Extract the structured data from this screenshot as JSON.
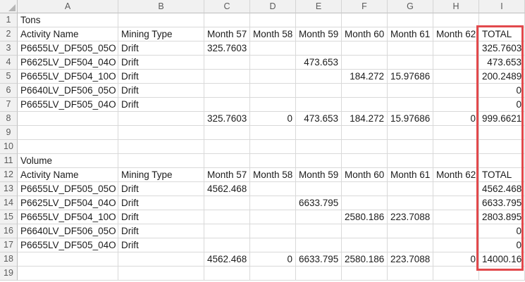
{
  "sheet": {
    "column_letters": [
      "A",
      "B",
      "C",
      "D",
      "E",
      "F",
      "G",
      "H",
      "I"
    ],
    "colors": {
      "highlight_border": "#e2494c",
      "gridline": "#d9d9d9",
      "header_background": "#f1f1f1",
      "header_text": "#5a5a5a"
    },
    "highlight": {
      "range": "I2:I18",
      "description": "red border drawn around the TOTAL column of both tables"
    },
    "rows": [
      {
        "n": "1",
        "cells": {
          "A": "Tons"
        }
      },
      {
        "n": "2",
        "cells": {
          "A": "Activity Name",
          "B": "Mining Type",
          "C": "Month 57",
          "D": "Month 58",
          "E": "Month 59",
          "F": "Month 60",
          "G": "Month 61",
          "H": "Month 62",
          "I": "TOTAL"
        }
      },
      {
        "n": "3",
        "cells": {
          "A": "P6655LV_DF505_05O",
          "B": "Drift",
          "C": "325.7603",
          "I": "325.7603"
        }
      },
      {
        "n": "4",
        "cells": {
          "A": "P6625LV_DF504_04O",
          "B": "Drift",
          "E": "473.653",
          "I": "473.653"
        }
      },
      {
        "n": "5",
        "cells": {
          "A": "P6655LV_DF504_10O",
          "B": "Drift",
          "F": "184.272",
          "G": "15.97686",
          "I": "200.2489"
        }
      },
      {
        "n": "6",
        "cells": {
          "A": "P6640LV_DF506_05O",
          "B": "Drift",
          "I": "0"
        }
      },
      {
        "n": "7",
        "cells": {
          "A": "P6655LV_DF505_04O",
          "B": "Drift",
          "I": "0"
        }
      },
      {
        "n": "8",
        "cells": {
          "C": "325.7603",
          "D": "0",
          "E": "473.653",
          "F": "184.272",
          "G": "15.97686",
          "H": "0",
          "I": "999.6621"
        }
      },
      {
        "n": "9",
        "cells": {}
      },
      {
        "n": "10",
        "cells": {}
      },
      {
        "n": "11",
        "cells": {
          "A": "Volume"
        }
      },
      {
        "n": "12",
        "cells": {
          "A": "Activity Name",
          "B": "Mining Type",
          "C": "Month 57",
          "D": "Month 58",
          "E": "Month 59",
          "F": "Month 60",
          "G": "Month 61",
          "H": "Month 62",
          "I": "TOTAL"
        }
      },
      {
        "n": "13",
        "cells": {
          "A": "P6655LV_DF505_05O",
          "B": "Drift",
          "C": "4562.468",
          "I": "4562.468"
        }
      },
      {
        "n": "14",
        "cells": {
          "A": "P6625LV_DF504_04O",
          "B": "Drift",
          "E": "6633.795",
          "I": "6633.795"
        }
      },
      {
        "n": "15",
        "cells": {
          "A": "P6655LV_DF504_10O",
          "B": "Drift",
          "F": "2580.186",
          "G": "223.7088",
          "I": "2803.895"
        }
      },
      {
        "n": "16",
        "cells": {
          "A": "P6640LV_DF506_05O",
          "B": "Drift",
          "I": "0"
        }
      },
      {
        "n": "17",
        "cells": {
          "A": "P6655LV_DF505_04O",
          "B": "Drift",
          "I": "0"
        }
      },
      {
        "n": "18",
        "cells": {
          "C": "4562.468",
          "D": "0",
          "E": "6633.795",
          "F": "2580.186",
          "G": "223.7088",
          "H": "0",
          "I": "14000.16"
        }
      },
      {
        "n": "19",
        "cells": {}
      }
    ]
  }
}
